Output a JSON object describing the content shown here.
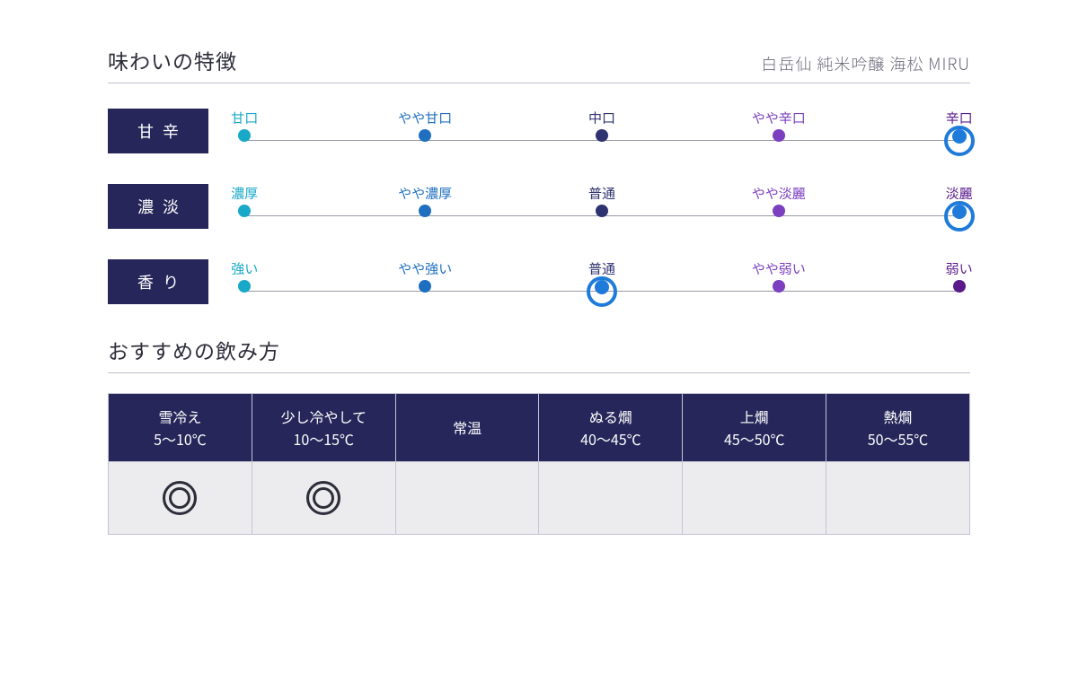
{
  "header": {
    "title": "味わいの特徴",
    "subtitle": "白岳仙 純米吟醸 海松 MIRU"
  },
  "colors": {
    "box_navy": "#26265a",
    "line": "#9a9aa6",
    "select_ring": "#1f7bd9",
    "c1": "#18a8c8",
    "c2": "#1f6fc0",
    "c3": "#2e3270",
    "c4": "#7b3fbf",
    "c5": "#5a1a8a",
    "body_bg": "#ececef",
    "mark": "#2d2d3a"
  },
  "scales": [
    {
      "name": "甘辛",
      "points": [
        {
          "label": "甘口"
        },
        {
          "label": "やや甘口"
        },
        {
          "label": "中口"
        },
        {
          "label": "やや辛口"
        },
        {
          "label": "辛口"
        }
      ],
      "selected": 4
    },
    {
      "name": "濃淡",
      "points": [
        {
          "label": "濃厚"
        },
        {
          "label": "やや濃厚"
        },
        {
          "label": "普通"
        },
        {
          "label": "やや淡麗"
        },
        {
          "label": "淡麗"
        }
      ],
      "selected": 4
    },
    {
      "name": "香り",
      "points": [
        {
          "label": "強い"
        },
        {
          "label": "やや強い"
        },
        {
          "label": "普通"
        },
        {
          "label": "やや弱い"
        },
        {
          "label": "弱い"
        }
      ],
      "selected": 2
    }
  ],
  "serving": {
    "title": "おすすめの飲み方",
    "columns": [
      {
        "name": "雪冷え",
        "temp": "5～10℃",
        "mark": true
      },
      {
        "name": "少し冷やして",
        "temp": "10～15℃",
        "mark": true
      },
      {
        "name": "常温",
        "temp": "",
        "mark": false
      },
      {
        "name": "ぬる燗",
        "temp": "40～45℃",
        "mark": false
      },
      {
        "name": "上燗",
        "temp": "45～50℃",
        "mark": false
      },
      {
        "name": "熱燗",
        "temp": "50～55℃",
        "mark": false
      }
    ]
  },
  "layout": {
    "point_positions_pct": [
      1.5,
      26,
      50,
      74,
      98.5
    ]
  }
}
